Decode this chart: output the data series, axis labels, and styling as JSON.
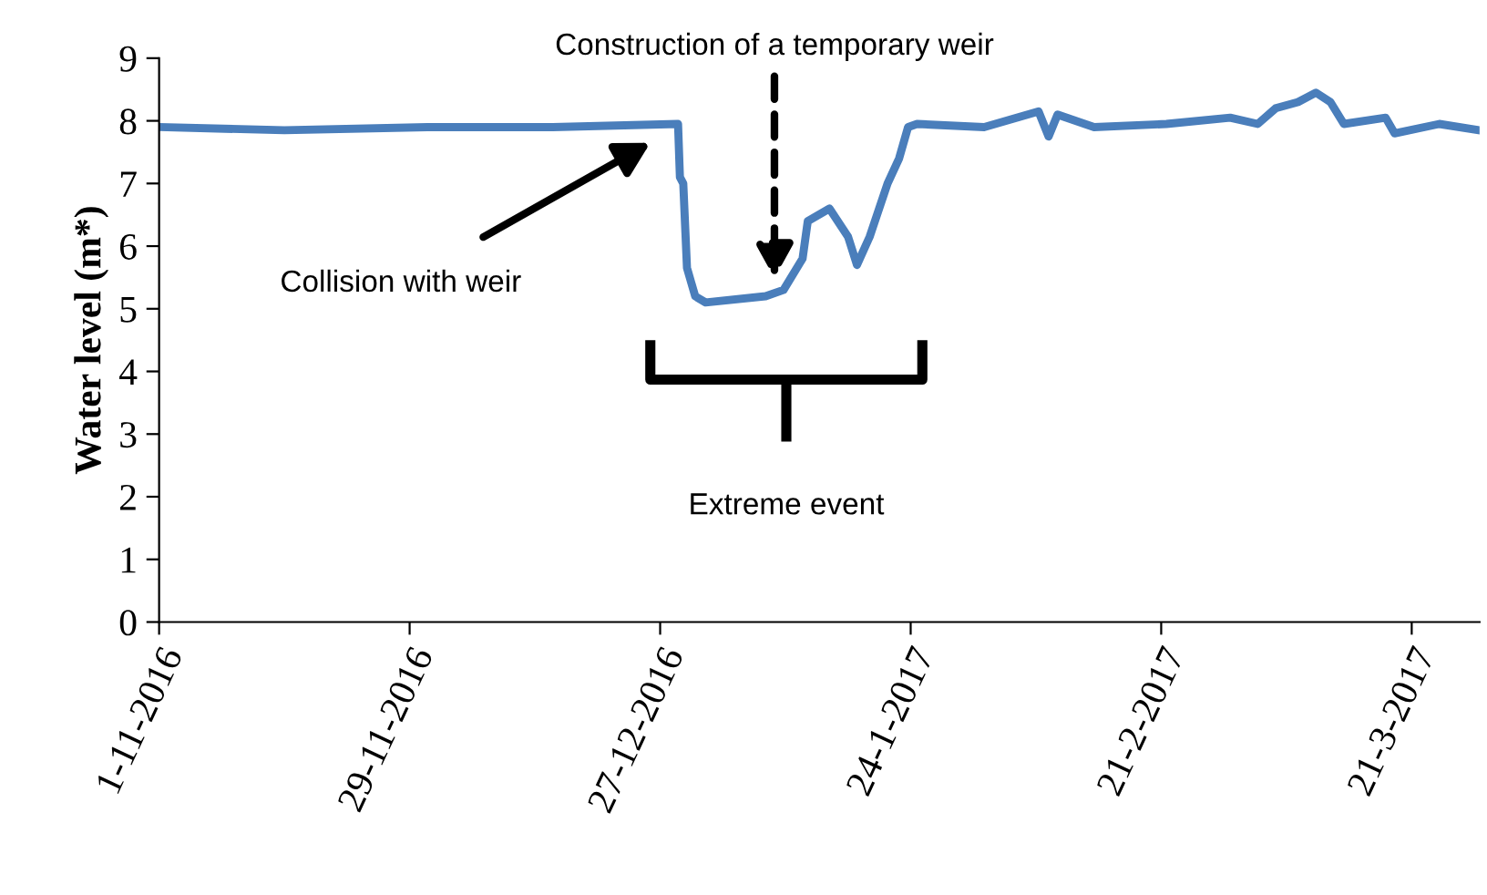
{
  "chart_data": {
    "type": "line",
    "ylabel": "Water level (m*)",
    "x": [
      "2016-11-01",
      "2016-11-15",
      "2016-12-01",
      "2016-12-15",
      "2016-12-29",
      "2016-12-29T05:00",
      "2016-12-29T14:00",
      "2016-12-30",
      "2016-12-30T22:00",
      "2017-01-01T02:00",
      "2017-01-07T19:00",
      "2017-01-09T19:00",
      "2017-01-11T22:00",
      "2017-01-12T12:00",
      "2017-01-14T22:00",
      "2017-01-17",
      "2017-01-18",
      "2017-01-19T10:00",
      "2017-01-21T10:00",
      "2017-01-22T17:00",
      "2017-01-23T17:00",
      "2017-01-24T17:00",
      "2017-02-01T05:00",
      "2017-02-07T07:00",
      "2017-02-08T10:00",
      "2017-02-09T10:00",
      "2017-02-13T12:00",
      "2017-02-21T14:00",
      "2017-02-28T17:00",
      "2017-03-03T19:00",
      "2017-03-05T19:00",
      "2017-03-08T07:00",
      "2017-03-10T07:00",
      "2017-03-11T22:00",
      "2017-03-13T10:00",
      "2017-03-18T02:00",
      "2017-03-19T02:00",
      "2017-03-24T02:00",
      "2017-03-28T14:00"
    ],
    "series": [
      {
        "color": "#4a7ebb",
        "values": [
          7.9,
          7.85,
          7.9,
          7.9,
          7.95,
          7.1,
          7.0,
          5.65,
          5.2,
          5.1,
          5.2,
          5.3,
          5.8,
          6.4,
          6.6,
          6.15,
          5.7,
          6.15,
          7.0,
          7.4,
          7.9,
          7.95,
          7.9,
          8.15,
          7.75,
          8.1,
          7.9,
          7.95,
          8.05,
          7.95,
          8.2,
          8.3,
          8.45,
          8.3,
          7.95,
          8.05,
          7.8,
          7.95,
          7.85
        ]
      }
    ],
    "xlim": [
      "2016-11-01",
      "2017-03-28T14:00"
    ],
    "xticks": [
      {
        "value": "2016-11-01",
        "label": "1-11-2016"
      },
      {
        "value": "2016-11-29",
        "label": "29-11-2016"
      },
      {
        "value": "2016-12-27",
        "label": "27-12-2016"
      },
      {
        "value": "2017-01-24",
        "label": "24-1-2017"
      },
      {
        "value": "2017-02-21",
        "label": "21-2-2017"
      },
      {
        "value": "2017-03-21",
        "label": "21-3-2017"
      }
    ],
    "ylim": [
      0,
      9
    ],
    "yticks": [
      0,
      1,
      2,
      3,
      4,
      5,
      6,
      7,
      8,
      9
    ],
    "grid": false,
    "legend": false,
    "annotations": [
      "Construction of a temporary weir",
      "Collision with weir",
      "Extreme event"
    ]
  }
}
